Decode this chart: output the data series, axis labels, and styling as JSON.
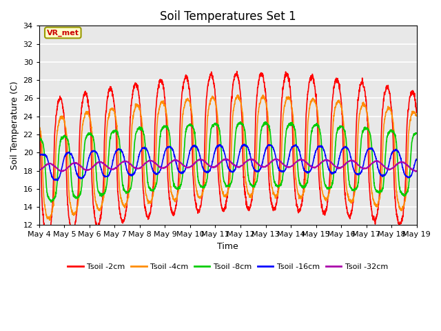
{
  "title": "Soil Temperatures Set 1",
  "xlabel": "Time",
  "ylabel": "Soil Temperature (C)",
  "ylim": [
    12,
    34
  ],
  "yticks": [
    12,
    14,
    16,
    18,
    20,
    22,
    24,
    26,
    28,
    30,
    32,
    34
  ],
  "annotation_text": "VR_met",
  "plot_bg_color": "#e8e8e8",
  "line_colors": {
    "2cm": "#ff0000",
    "4cm": "#ff8c00",
    "8cm": "#00cc00",
    "16cm": "#0000ff",
    "32cm": "#aa00aa"
  },
  "line_widths": {
    "2cm": 1.2,
    "4cm": 1.2,
    "8cm": 1.2,
    "16cm": 1.2,
    "32cm": 1.2
  },
  "legend_labels": [
    "Tsoil -2cm",
    "Tsoil -4cm",
    "Tsoil -8cm",
    "Tsoil -16cm",
    "Tsoil -32cm"
  ],
  "n_days": 15,
  "ppd": 144,
  "start_day": 4
}
